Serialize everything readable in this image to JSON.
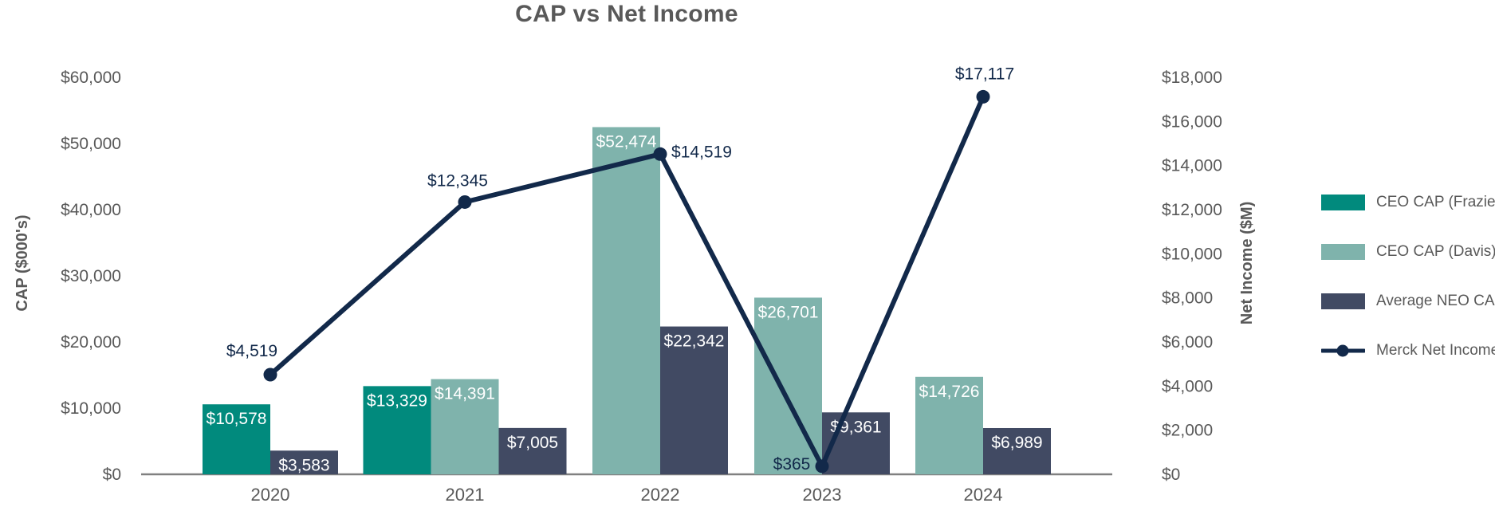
{
  "chart_data": {
    "type": "combo-bar-line",
    "title": "CAP vs Net Income",
    "categories": [
      "2020",
      "2021",
      "2022",
      "2023",
      "2024"
    ],
    "bar_series": [
      {
        "name": "CEO CAP (Frazier)",
        "color_key": "frazier",
        "values": [
          10578,
          13329,
          null,
          null,
          null
        ]
      },
      {
        "name": "CEO CAP (Davis)",
        "color_key": "davis",
        "values": [
          null,
          14391,
          52474,
          26701,
          14726
        ]
      },
      {
        "name": "Average NEO CAP",
        "color_key": "neo",
        "values": [
          3583,
          7005,
          22342,
          9361,
          6989
        ]
      }
    ],
    "line_series": {
      "name": "Merck Net Income",
      "color_key": "line",
      "values": [
        4519,
        12345,
        14519,
        365,
        17117
      ]
    },
    "bar_labels": [
      [
        "$10,578",
        "$13,329",
        null,
        null,
        null
      ],
      [
        null,
        "$14,391",
        "$52,474",
        "$26,701",
        "$14,726"
      ],
      [
        "$3,583",
        "$7,005",
        "$22,342",
        "$9,361",
        "$6,989"
      ]
    ],
    "line_labels": [
      "$4,519",
      "$12,345",
      "$14,519",
      "$365",
      "$17,117"
    ],
    "left_axis": {
      "label": "CAP ($000's)",
      "min": 0,
      "max": 60000,
      "ticks": [
        "$0",
        "$10,000",
        "$20,000",
        "$30,000",
        "$40,000",
        "$50,000",
        "$60,000"
      ]
    },
    "right_axis": {
      "label": "Net Income ($M)",
      "min": 0,
      "max": 18000,
      "ticks": [
        "$0",
        "$2,000",
        "$4,000",
        "$6,000",
        "$8,000",
        "$10,000",
        "$12,000",
        "$14,000",
        "$16,000",
        "$18,000"
      ]
    },
    "legend_position": "right",
    "grid": false
  },
  "colors": {
    "frazier": "#018A7D",
    "davis": "#7FB3AC",
    "neo": "#414A63",
    "line": "#12294A",
    "title_text": "#595959",
    "axis_text": "#595959",
    "axis_line": "#808080",
    "bar_label_text": "#FFFFFF"
  }
}
